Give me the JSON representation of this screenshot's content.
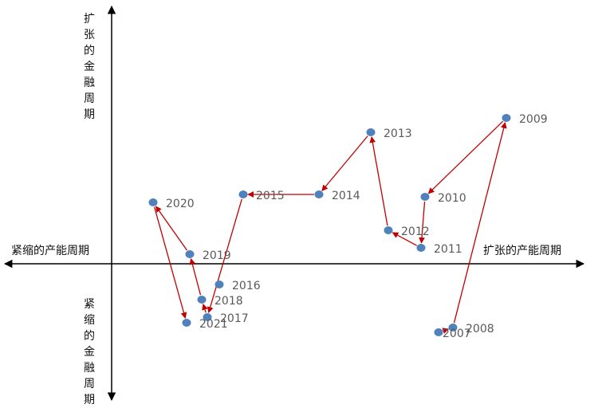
{
  "axis_labels": {
    "y_top": "扩张的金融周期",
    "y_bottom": "紧缩的金融周期",
    "x_left": "紧缩的产能周期",
    "x_right": "扩张的产能周期"
  },
  "colors": {
    "point": "#4F81BD",
    "arrow": "#C00000",
    "axis": "#000000",
    "label": "#595959"
  },
  "chart_data": {
    "type": "scatter",
    "title": "",
    "xlabel": "扩张的产能周期",
    "ylabel": "扩张的金融周期",
    "xlim": [
      -130,
      600
    ],
    "ylim": [
      -170,
      320
    ],
    "points": [
      {
        "label": "2007",
        "x": 410,
        "y": -86
      },
      {
        "label": "2008",
        "x": 428,
        "y": -80
      },
      {
        "label": "2009",
        "x": 495,
        "y": 183
      },
      {
        "label": "2010",
        "x": 393,
        "y": 84
      },
      {
        "label": "2011",
        "x": 388,
        "y": 20
      },
      {
        "label": "2012",
        "x": 347,
        "y": 42
      },
      {
        "label": "2013",
        "x": 325,
        "y": 165
      },
      {
        "label": "2014",
        "x": 260,
        "y": 87
      },
      {
        "label": "2015",
        "x": 165,
        "y": 87
      },
      {
        "label": "2016",
        "x": 135,
        "y": -26
      },
      {
        "label": "2017",
        "x": 120,
        "y": -67
      },
      {
        "label": "2018",
        "x": 113,
        "y": -45
      },
      {
        "label": "2019",
        "x": 98,
        "y": 12
      },
      {
        "label": "2020",
        "x": 52,
        "y": 77
      },
      {
        "label": "2021",
        "x": 94,
        "y": -74
      }
    ],
    "arrows": [
      [
        "2007",
        "2008"
      ],
      [
        "2008",
        "2009"
      ],
      [
        "2009",
        "2010"
      ],
      [
        "2010",
        "2011"
      ],
      [
        "2011",
        "2012"
      ],
      [
        "2012",
        "2013"
      ],
      [
        "2013",
        "2014"
      ],
      [
        "2014",
        "2015"
      ],
      [
        "2015",
        "2017"
      ],
      [
        "2017",
        "2018"
      ],
      [
        "2018",
        "2019"
      ],
      [
        "2019",
        "2020"
      ],
      [
        "2020",
        "2021"
      ]
    ]
  }
}
